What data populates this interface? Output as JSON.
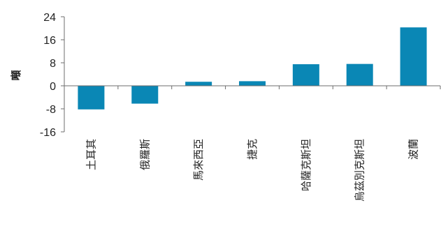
{
  "chart_data": {
    "type": "bar",
    "title": "",
    "xlabel": "",
    "ylabel": "噸",
    "categories": [
      "土耳其",
      "俄羅斯",
      "馬來西亞",
      "捷克",
      "哈薩克斯坦",
      "烏茲別克斯坦",
      "波蘭"
    ],
    "values": [
      -8.2,
      -6.2,
      1.4,
      1.6,
      7.5,
      7.6,
      20.3
    ],
    "ylim": [
      -16,
      24
    ],
    "yticks": [
      -16,
      -8,
      0,
      8,
      16,
      24
    ],
    "ytick_labels": [
      "-16",
      "-8",
      "0",
      "8",
      "16",
      "24"
    ],
    "grid": false,
    "legend": "none",
    "colors": {
      "bar": "#0a87b5",
      "axis": "#6d6d6d",
      "text": "#222222"
    }
  }
}
